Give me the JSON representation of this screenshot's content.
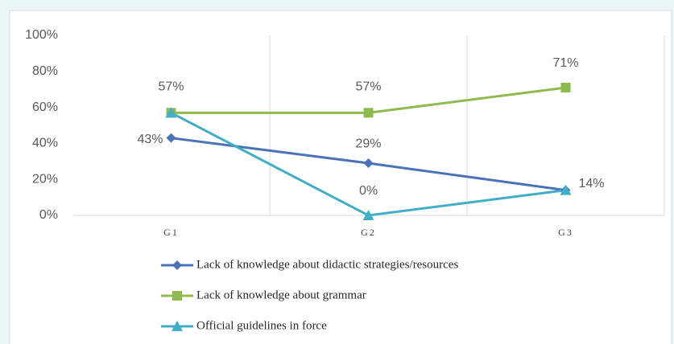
{
  "chart_data": {
    "type": "line",
    "categories": [
      "G1",
      "G2",
      "G3"
    ],
    "series": [
      {
        "name": "Lack of knowledge about didactic strategies/resources",
        "color": "#4a72b8",
        "marker": "diamond",
        "values": [
          43,
          29,
          14
        ],
        "value_labels": [
          "43%",
          "29%",
          null
        ]
      },
      {
        "name": "Lack of knowledge about grammar",
        "color": "#8fba4f",
        "marker": "square",
        "values": [
          57,
          57,
          71
        ],
        "value_labels": [
          "57%",
          "57%",
          "71%"
        ]
      },
      {
        "name": "Official guidelines in force",
        "color": "#41aec6",
        "marker": "triangle",
        "values": [
          57,
          0,
          14
        ],
        "value_labels": [
          null,
          "0%",
          "14%"
        ]
      }
    ],
    "ylim": [
      0,
      100
    ],
    "yticks": [
      {
        "value": 0,
        "label": "0%"
      },
      {
        "value": 20,
        "label": "20%"
      },
      {
        "value": 40,
        "label": "40%"
      },
      {
        "value": 60,
        "label": "60%"
      },
      {
        "value": 80,
        "label": "80%"
      },
      {
        "value": 100,
        "label": "100%"
      }
    ],
    "legend": "bottom"
  }
}
